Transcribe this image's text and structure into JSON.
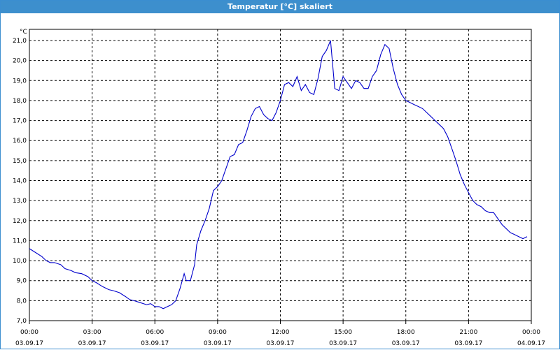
{
  "window": {
    "title": "Temperatur [°C] skaliert"
  },
  "colors": {
    "titlebar": "#3d8fcd",
    "line": "#0000cc",
    "grid": "#000000"
  },
  "chart_data": {
    "type": "line",
    "title": "Temperatur [°C] skaliert",
    "ylabel": "°C",
    "xlabel": "",
    "ylim": [
      7.0,
      21.3
    ],
    "xlim_hours": [
      0,
      24
    ],
    "grid": true,
    "y_ticks": [
      "7,0",
      "8,0",
      "9,0",
      "10,0",
      "11,0",
      "12,0",
      "13,0",
      "14,0",
      "15,0",
      "16,0",
      "17,0",
      "18,0",
      "19,0",
      "20,0",
      "21,0"
    ],
    "x_ticks": [
      {
        "time": "00:00",
        "date": "03.09.17"
      },
      {
        "time": "03:00",
        "date": "03.09.17"
      },
      {
        "time": "06:00",
        "date": "03.09.17"
      },
      {
        "time": "09:00",
        "date": "03.09.17"
      },
      {
        "time": "12:00",
        "date": "03.09.17"
      },
      {
        "time": "15:00",
        "date": "03.09.17"
      },
      {
        "time": "18:00",
        "date": "03.09.17"
      },
      {
        "time": "21:00",
        "date": "03.09.17"
      },
      {
        "time": "00:00",
        "date": "04.09.17"
      }
    ],
    "series": [
      {
        "x": [
          0.0,
          0.3,
          0.6,
          0.8,
          1.0,
          1.2,
          1.5,
          1.7,
          2.0,
          2.2,
          2.5,
          2.8,
          3.0,
          3.2,
          3.5,
          3.8,
          4.0,
          4.3,
          4.6,
          4.8,
          5.0,
          5.3,
          5.6,
          5.8,
          6.0,
          6.2,
          6.4,
          6.6,
          6.8,
          7.0,
          7.2,
          7.4,
          7.5,
          7.7,
          7.9,
          8.0,
          8.2,
          8.4,
          8.6,
          8.8,
          9.0,
          9.2,
          9.4,
          9.6,
          9.8,
          10.0,
          10.2,
          10.4,
          10.6,
          10.8,
          11.0,
          11.2,
          11.4,
          11.6,
          11.8,
          12.0,
          12.2,
          12.4,
          12.6,
          12.8,
          13.0,
          13.2,
          13.4,
          13.6,
          13.8,
          14.0,
          14.2,
          14.4,
          14.6,
          14.8,
          15.0,
          15.2,
          15.4,
          15.6,
          15.8,
          16.0,
          16.2,
          16.4,
          16.6,
          16.8,
          17.0,
          17.2,
          17.4,
          17.6,
          17.8,
          18.0,
          18.2,
          18.4,
          18.6,
          18.8,
          19.0,
          19.2,
          19.4,
          19.6,
          19.8,
          20.0,
          20.2,
          20.4,
          20.6,
          20.8,
          21.0,
          21.2,
          21.4,
          21.6,
          21.8,
          22.0,
          22.2,
          22.4,
          22.6,
          22.8,
          23.0,
          23.2,
          23.4,
          23.6,
          23.8
        ],
        "y": [
          10.6,
          10.4,
          10.2,
          10.0,
          9.9,
          9.9,
          9.8,
          9.6,
          9.5,
          9.4,
          9.35,
          9.2,
          9.0,
          8.9,
          8.7,
          8.55,
          8.5,
          8.4,
          8.2,
          8.05,
          8.0,
          7.9,
          7.8,
          7.85,
          7.7,
          7.7,
          7.6,
          7.7,
          7.8,
          8.0,
          8.6,
          9.35,
          9.0,
          9.0,
          9.8,
          10.8,
          11.5,
          12.0,
          12.6,
          13.5,
          13.7,
          14.0,
          14.6,
          15.2,
          15.3,
          15.8,
          15.9,
          16.5,
          17.2,
          17.6,
          17.7,
          17.3,
          17.1,
          17.0,
          17.4,
          18.0,
          18.8,
          18.9,
          18.7,
          19.2,
          18.5,
          18.8,
          18.4,
          18.3,
          19.1,
          20.2,
          20.5,
          21.0,
          18.6,
          18.5,
          19.2,
          18.9,
          18.6,
          19.0,
          18.9,
          18.6,
          18.6,
          19.2,
          19.5,
          20.3,
          20.8,
          20.6,
          19.6,
          18.8,
          18.3,
          18.0,
          17.9,
          17.8,
          17.7,
          17.6,
          17.4,
          17.2,
          17.0,
          16.8,
          16.6,
          16.2,
          15.6,
          15.0,
          14.3,
          13.8,
          13.4,
          13.0,
          12.8,
          12.7,
          12.5,
          12.4,
          12.4,
          12.1,
          11.8,
          11.6,
          11.4,
          11.3,
          11.2,
          11.1,
          11.2
        ]
      }
    ]
  }
}
